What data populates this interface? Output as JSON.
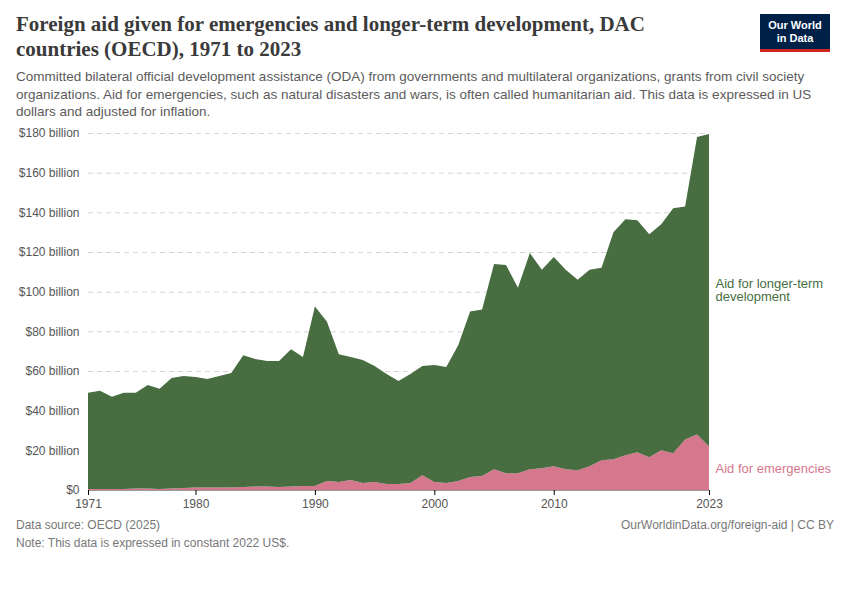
{
  "chart_data": {
    "type": "area",
    "title": "Foreign aid given for emergencies and longer-term development, DAC countries (OECD), 1971 to 2023",
    "subtitle": "Committed bilateral official development assistance (ODA) from governments and multilateral organizations, grants from civil society organizations. Aid for emergencies, such as natural disasters and wars, is often called humanitarian aid. This data is expressed in US dollars and adjusted for inflation.",
    "logo": "Our World in Data",
    "source": "Data source: OECD (2025)",
    "url": "OurWorldinData.org/foreign-aid | CC BY",
    "note": "Note: This data is expressed in constant 2022 US$.",
    "stacked": true,
    "grid": true,
    "x": [
      1971,
      1972,
      1973,
      1974,
      1975,
      1976,
      1977,
      1978,
      1979,
      1980,
      1981,
      1982,
      1983,
      1984,
      1985,
      1986,
      1987,
      1988,
      1989,
      1990,
      1991,
      1992,
      1993,
      1994,
      1995,
      1996,
      1997,
      1998,
      1999,
      2000,
      2001,
      2002,
      2003,
      2004,
      2005,
      2006,
      2007,
      2008,
      2009,
      2010,
      2011,
      2012,
      2013,
      2014,
      2015,
      2016,
      2017,
      2018,
      2019,
      2020,
      2021,
      2022,
      2023
    ],
    "xlim": [
      1971,
      2023
    ],
    "xticks": [
      1971,
      1980,
      1990,
      2000,
      2010,
      2023
    ],
    "ylim": [
      0,
      180
    ],
    "yticks": [
      {
        "value": 0,
        "label": "$0"
      },
      {
        "value": 20,
        "label": "$20 billion"
      },
      {
        "value": 40,
        "label": "$40 billion"
      },
      {
        "value": 60,
        "label": "$60 billion"
      },
      {
        "value": 80,
        "label": "$80 billion"
      },
      {
        "value": 100,
        "label": "$100 billion"
      },
      {
        "value": 120,
        "label": "$120 billion"
      },
      {
        "value": 140,
        "label": "$140 billion"
      },
      {
        "value": 160,
        "label": "$160 billion"
      },
      {
        "value": 180,
        "label": "$180 billion"
      }
    ],
    "series": [
      {
        "name": "Aid for emergencies",
        "color": "#d5788d",
        "values": [
          0.5,
          0.5,
          0.5,
          0.5,
          0.7,
          0.7,
          0.5,
          0.8,
          1,
          1.2,
          1.2,
          1.2,
          1.3,
          1.5,
          1.8,
          1.8,
          1.5,
          1.8,
          2,
          2,
          4.5,
          4,
          5,
          3.5,
          4,
          3,
          3,
          3.5,
          7.5,
          4,
          3.5,
          4.5,
          6.5,
          7,
          10.5,
          8.5,
          8.5,
          10.5,
          11,
          12,
          10.5,
          10,
          12,
          15,
          15.5,
          17.5,
          19,
          16.5,
          20,
          18.5,
          25.5,
          28,
          22
        ]
      },
      {
        "name": "Aid for longer-term development",
        "color": "#476d41",
        "values": [
          48.5,
          49.5,
          46.5,
          48.5,
          48.3,
          52.3,
          50.5,
          55.7,
          56.5,
          55.8,
          54.8,
          56.3,
          57.7,
          66.5,
          64.2,
          63.2,
          63.5,
          69.2,
          65,
          90.5,
          80.5,
          64.5,
          62,
          62,
          58.5,
          55.5,
          52,
          55,
          55,
          59,
          58.5,
          68.5,
          83.5,
          84,
          103.5,
          105,
          93.5,
          109,
          100,
          105.5,
          100.5,
          96,
          99,
          97,
          114.5,
          119,
          117,
          112.5,
          114,
          123.5,
          117.5,
          150,
          157.5
        ]
      }
    ]
  }
}
